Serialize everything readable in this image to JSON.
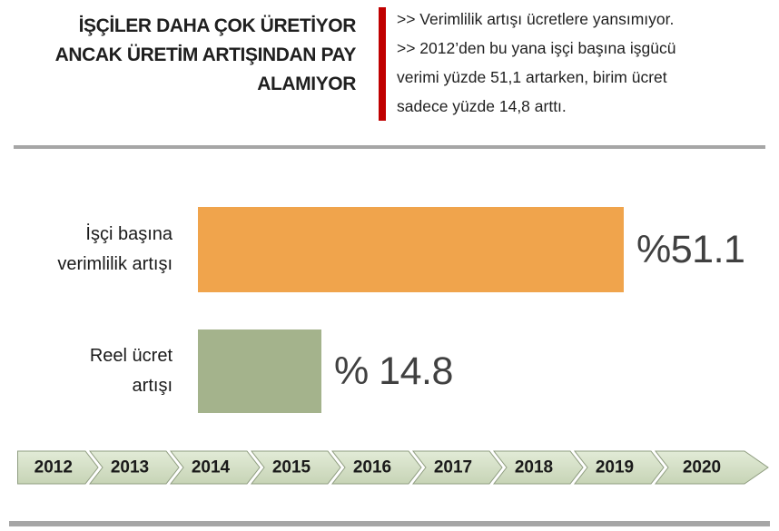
{
  "header": {
    "title_lines": [
      "İŞÇİLER DAHA ÇOK ÜRETİYOR",
      "ANCAK ÜRETİM ARTIŞINDAN PAY",
      "ALAMIYOR"
    ],
    "accent_color": "#c00000",
    "bullets": [
      {
        "lines": [
          ">> Verimlilik artışı ücretlere yansımıyor."
        ]
      },
      {
        "lines": [
          ">> 2012’den bu yana işçi başına işgücü",
          "verimi yüzde 51,1 artarken, birim ücret",
          "sadece yüzde 14,8 arttı."
        ]
      }
    ]
  },
  "chart_data": {
    "type": "bar",
    "orientation": "horizontal",
    "title": "İşçiler daha çok üretiyor ancak üretim artışından pay alamıyor",
    "categories": [
      "İşçi başına verimlilik artışı",
      "Reel ücret artışı"
    ],
    "category_label_lines": [
      [
        "İşçi başına",
        "verimlilik artışı"
      ],
      [
        "Reel ücret",
        "artışı"
      ]
    ],
    "values": [
      51.1,
      14.8
    ],
    "value_labels": [
      "%51.1",
      "% 14.8"
    ],
    "bar_colors": [
      "#f0a44c",
      "#a4b38c"
    ],
    "value_label_color": "#404040",
    "xlim": [
      0,
      55
    ],
    "grid": false,
    "legend": "none",
    "timeline_years": [
      "2012",
      "2013",
      "2014",
      "2015",
      "2016",
      "2017",
      "2018",
      "2019",
      "2020"
    ]
  },
  "timeline": {
    "fill_top": "#e2ebd7",
    "fill_bottom": "#c7d4b6",
    "border_color": "#8f9d80",
    "text_color": "#1a1a1a"
  },
  "colors": {
    "divider": "#a6a6a6",
    "background": "#ffffff"
  }
}
